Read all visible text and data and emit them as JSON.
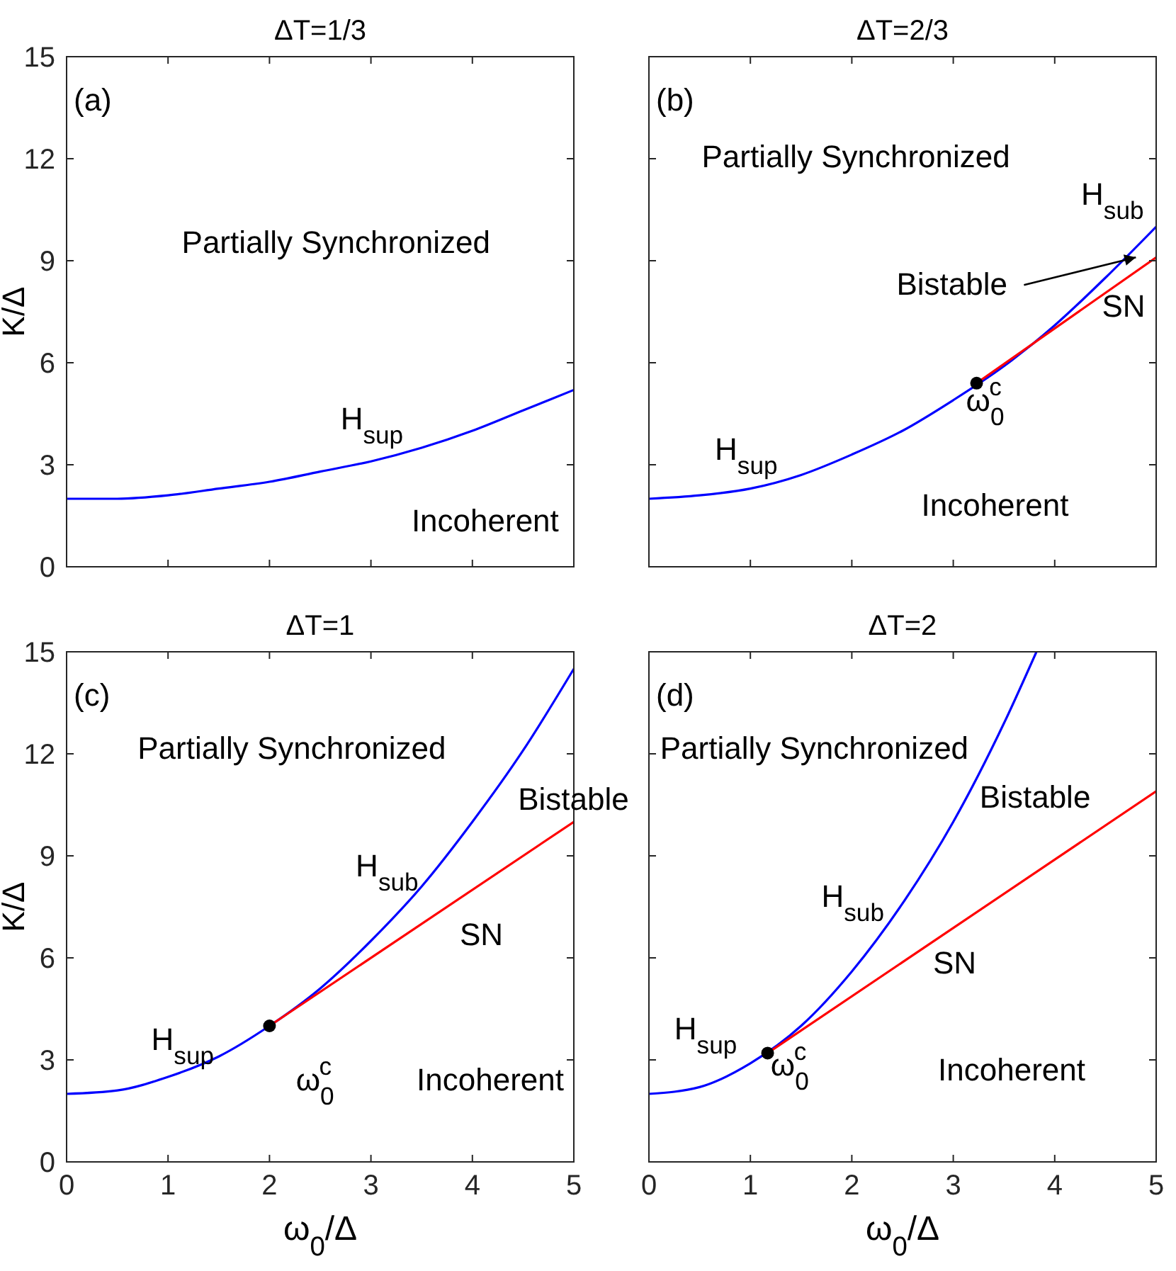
{
  "chart_data": [
    {
      "type": "line",
      "title": "ΔT=1/3",
      "ylabel": "K/Δ",
      "xlim": [
        0,
        5
      ],
      "ylim": [
        0,
        15
      ],
      "xticks": [
        0,
        1,
        2,
        3,
        4,
        5
      ],
      "yticks": [
        0,
        3,
        6,
        9,
        12,
        15
      ],
      "tick_labels": "y",
      "annotations": [
        "(a)",
        "Partially Synchronized",
        "H$_{sup}$",
        "Incoherent"
      ],
      "series": [
        {
          "color": "#0000ff",
          "x": [
            0,
            0.5,
            1,
            1.5,
            2,
            2.5,
            3,
            3.5,
            4,
            4.5,
            5
          ],
          "values": [
            2,
            2,
            2.1,
            2.3,
            2.5,
            2.8,
            3.1,
            3.5,
            4,
            4.6,
            5.2
          ]
        }
      ]
    },
    {
      "type": "line",
      "title": "ΔT=2/3",
      "xlim": [
        0,
        5
      ],
      "ylim": [
        0,
        15
      ],
      "xticks": [
        0,
        1,
        2,
        3,
        4,
        5
      ],
      "yticks": [
        0,
        3,
        6,
        9,
        12,
        15
      ],
      "tick_labels": false,
      "annotations": [
        "(b)",
        "Partially Synchronized",
        "H$_{sub}$",
        {
          "text": "Bistable",
          "x": 4.8,
          "y": 9.1
        },
        "SN",
        "ω$_{0}$$^{c}$",
        "H$_{sup}$",
        "Incoherent"
      ],
      "series": [
        {
          "color": "#0000ff",
          "x": [
            0,
            0.5,
            1,
            1.5,
            2,
            2.5,
            3,
            3.5,
            4,
            4.5,
            5
          ],
          "values": [
            2,
            2.1,
            2.3,
            2.7,
            3.3,
            4,
            4.9,
            5.9,
            7.1,
            8.5,
            10
          ]
        },
        {
          "color": "#ff0000",
          "x": [
            3.23,
            5
          ],
          "values": [
            5.4,
            9.1
          ]
        },
        {
          "type": "scatter",
          "marker": "circle",
          "color": "#000000",
          "x": [
            3.23
          ],
          "values": [
            5.4
          ]
        }
      ]
    },
    {
      "type": "line",
      "title": "ΔT=1",
      "xlabel": "ω$_{0}$/Δ",
      "ylabel": "K/Δ",
      "xlim": [
        0,
        5
      ],
      "ylim": [
        0,
        15
      ],
      "xticks": [
        0,
        1,
        2,
        3,
        4,
        5
      ],
      "yticks": [
        0,
        3,
        6,
        9,
        12,
        15
      ],
      "annotations": [
        "(c)",
        "Partially Synchronized",
        "Bistable",
        "H$_{sub}$",
        "SN",
        "ω$_{0}$$^{c}$",
        "H$_{sup}$",
        "Incoherent"
      ],
      "series": [
        {
          "color": "#0000ff",
          "x": [
            0,
            0.5,
            1,
            1.5,
            2,
            2.5,
            3,
            3.5,
            4,
            4.5,
            5
          ],
          "values": [
            2,
            2.1,
            2.5,
            3.1,
            4,
            5.1,
            6.5,
            8.1,
            10,
            12.1,
            14.5
          ]
        },
        {
          "color": "#ff0000",
          "x": [
            2,
            5
          ],
          "values": [
            4,
            10
          ]
        },
        {
          "type": "scatter",
          "marker": "circle",
          "color": "#000000",
          "x": [
            2
          ],
          "values": [
            4
          ]
        }
      ]
    },
    {
      "type": "line",
      "title": "ΔT=2",
      "xlabel": "ω$_{0}$/Δ",
      "xlim": [
        0,
        5
      ],
      "ylim": [
        0,
        15
      ],
      "xticks": [
        0,
        1,
        2,
        3,
        4,
        5
      ],
      "yticks": [
        0,
        3,
        6,
        9,
        12,
        15
      ],
      "tick_labels": "x",
      "annotations": [
        "(d)",
        "Partially Synchronized",
        "Bistable",
        "H$_{sub}$",
        "SN",
        "ω$_{0}$$^{c}$",
        "H$_{sup}$",
        "Incoherent"
      ],
      "series": [
        {
          "color": "#0000ff",
          "x": [
            0,
            0.5,
            1,
            1.5,
            2,
            2.5,
            3,
            3.5,
            3.82
          ],
          "values": [
            2,
            2.2,
            2.9,
            4,
            5.6,
            7.6,
            10,
            12.9,
            15
          ]
        },
        {
          "color": "#ff0000",
          "x": [
            1.17,
            5
          ],
          "values": [
            3.2,
            10.9
          ]
        },
        {
          "type": "scatter",
          "marker": "circle",
          "color": "#000000",
          "x": [
            1.17
          ],
          "values": [
            3.2
          ]
        }
      ]
    }
  ]
}
